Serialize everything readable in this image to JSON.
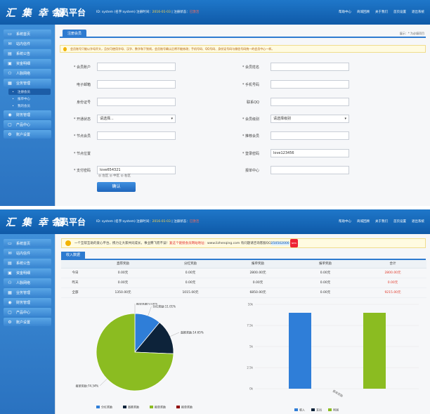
{
  "brand": {
    "logo": "汇 集 幸 福",
    "platform": "会员平台"
  },
  "header": {
    "user": "ID: system (名字:system)",
    "register_label": "注册时间",
    "register_value": "2016-01-03",
    "status_label": "注册状态",
    "status_value": "已激活"
  },
  "top_nav": [
    "帮助中心",
    "商城回顾",
    "关于我们",
    "首页设置",
    "退出系统"
  ],
  "sidebar": {
    "items": [
      {
        "label": "系统首页",
        "icon": "monitor-icon"
      },
      {
        "label": "站内信件",
        "icon": "mail-icon"
      },
      {
        "label": "系统公告",
        "icon": "notice-icon"
      },
      {
        "label": "资金明细",
        "icon": "wallet-icon"
      },
      {
        "label": "人脉网络",
        "icon": "network-icon"
      },
      {
        "label": "业务管理",
        "icon": "briefcase-icon"
      },
      {
        "label": "注册会员",
        "icon": "dot-icon",
        "sub": true,
        "active": true
      },
      {
        "label": "报单中心",
        "icon": "dot-icon",
        "sub": true
      },
      {
        "label": "我的会员",
        "icon": "dot-icon",
        "sub": true
      },
      {
        "label": "财务管理",
        "icon": "coin-icon"
      },
      {
        "label": "产品中心",
        "icon": "box-icon"
      },
      {
        "label": "账户设置",
        "icon": "gear-icon"
      }
    ],
    "items2": [
      {
        "label": "系统首页",
        "icon": "monitor-icon"
      },
      {
        "label": "站内信件",
        "icon": "mail-icon"
      },
      {
        "label": "系统公告",
        "icon": "notice-icon"
      },
      {
        "label": "资金明细",
        "icon": "wallet-icon"
      },
      {
        "label": "人脉网络",
        "icon": "network-icon"
      },
      {
        "label": "业务管理",
        "icon": "briefcase-icon"
      },
      {
        "label": "财务管理",
        "icon": "coin-icon"
      },
      {
        "label": "产品中心",
        "icon": "box-icon"
      },
      {
        "label": "账户设置",
        "icon": "gear-icon"
      }
    ]
  },
  "register": {
    "tab": "注册会员",
    "crumb": "展示：* 为必填项目",
    "notice": "会员账号只能以字母开头，且仅可使用字母、汉字、数字和下划线，会员账号确认后将不能修改；手机号码、QQ号码、身份证号码与微信号码统一的会员中心一样。",
    "fields": [
      {
        "label": "* 会员账户",
        "value": ""
      },
      {
        "label": "* 会员姓名",
        "value": ""
      },
      {
        "label": "电子邮箱",
        "value": ""
      },
      {
        "label": "* 手机号码",
        "value": ""
      },
      {
        "label": "身份证号",
        "value": ""
      },
      {
        "label": "联系QQ",
        "value": ""
      },
      {
        "label": "* 开通状态",
        "value": "请选择..."
      },
      {
        "label": "* 会员级别",
        "value": "请选择级别"
      },
      {
        "label": "* 节点会员",
        "value": ""
      },
      {
        "label": "* 推荐会员",
        "value": ""
      },
      {
        "label": "* 节点位置",
        "value": ""
      },
      {
        "label": "* 登录密码",
        "value": "love123456"
      },
      {
        "label": "* 支付密码",
        "value": "love654321"
      },
      {
        "label": "报单中心",
        "value": ""
      }
    ],
    "position_options": [
      "左区",
      "中区",
      "右区"
    ],
    "submit": "确认"
  },
  "dashboard": {
    "announcement": "一个互帮互助的爱心平台，携力让大家共同成长，事业腾飞而不误！",
    "announce_red": "复这个链接会员网站地址：",
    "site": "www.lizhenqing.com",
    "qq_label": "有问题请咨询客服QQ",
    "qq": "250502000",
    "new_badge": "NEW",
    "tab": "收入数据",
    "columns": [
      "",
      "直荐奖励",
      "分红奖励",
      "报单奖励",
      "报单奖励",
      "合计"
    ],
    "rows": [
      {
        "label": "今日",
        "values": [
          "0.00元",
          "0.00元",
          "2800.00元",
          "0.00元",
          "2800.00元"
        ]
      },
      {
        "label": "昨天",
        "values": [
          "0.00元",
          "0.00元",
          "0.00元",
          "0.00元",
          "0.00元"
        ]
      },
      {
        "label": "全部",
        "values": [
          "1350.00元",
          "1015.00元",
          "6850.00元",
          "0.00元",
          "9215.00元"
        ]
      }
    ]
  },
  "chart_data": [
    {
      "type": "pie",
      "categories": [
        "分红奖励",
        "直推奖励",
        "报单奖励",
        "报单奖励"
      ],
      "values": [
        11.01,
        14.65,
        74.34,
        0.0
      ],
      "slice_labels": [
        "分红奖励:11.01%",
        "直推奖励:14.65%",
        "报单奖励:74.34%",
        "报单奖励:0.00%"
      ],
      "colors": [
        "#2f7ed8",
        "#0d233a",
        "#8bbc21",
        "#910000"
      ],
      "legend": "bottom"
    },
    {
      "type": "bar",
      "categories": [
        "报单奖励"
      ],
      "series": [
        {
          "name": "收入",
          "values": [
            9000
          ],
          "color": "#2f7ed8"
        },
        {
          "name": "支出",
          "values": [
            0
          ],
          "color": "#0d233a"
        },
        {
          "name": "利润",
          "values": [
            9000
          ],
          "color": "#8bbc21"
        }
      ],
      "yticks": [
        "0k",
        "2.5k",
        "5k",
        "7.5k",
        "10k"
      ],
      "ylim": [
        0,
        10000
      ],
      "legend": "bottom"
    }
  ]
}
